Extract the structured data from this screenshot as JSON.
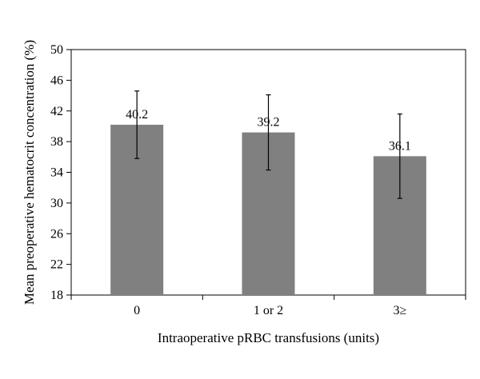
{
  "chart_data": {
    "type": "bar",
    "categories": [
      "0",
      "1 or 2",
      "3≥"
    ],
    "values": [
      40.2,
      39.2,
      36.1
    ],
    "data_labels": [
      "40.2",
      "39.2",
      "36.1"
    ],
    "error_bars": [
      {
        "low": 35.8,
        "high": 44.6
      },
      {
        "low": 34.3,
        "high": 44.1
      },
      {
        "low": 30.6,
        "high": 41.6
      }
    ],
    "xlabel": "Intraoperative pRBC transfusions (units)",
    "ylabel": "Mean preoperative hematocrit concentration (%)",
    "ylim": [
      18,
      50
    ],
    "yticks": [
      18,
      22,
      26,
      30,
      34,
      38,
      42,
      46,
      50
    ],
    "ytick_labels": [
      "18",
      "22",
      "26",
      "30",
      "34",
      "38",
      "42",
      "46",
      "50"
    ],
    "grid": false,
    "legend": "none",
    "colors": {
      "bar": "#808080",
      "axis": "#000000",
      "error_bar": "#000000"
    }
  }
}
